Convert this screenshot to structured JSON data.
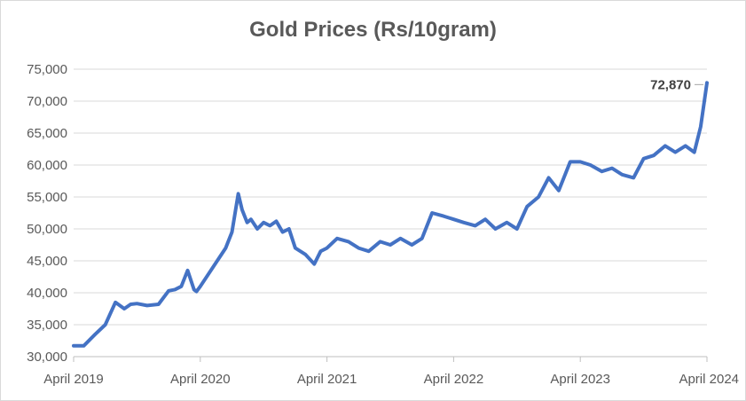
{
  "chart_data": {
    "type": "line",
    "title": "Gold Prices (Rs/10gram)",
    "xlabel": "",
    "ylabel": "",
    "ylim": [
      30000,
      75000
    ],
    "y_ticks": [
      30000,
      35000,
      40000,
      45000,
      50000,
      55000,
      60000,
      65000,
      70000,
      75000
    ],
    "y_tick_labels": [
      "30,000",
      "35,000",
      "40,000",
      "45,000",
      "50,000",
      "55,000",
      "60,000",
      "65,000",
      "70,000",
      "75,000"
    ],
    "x_range": [
      2019.25,
      2024.25
    ],
    "x_ticks": [
      2019.25,
      2020.25,
      2021.25,
      2022.25,
      2023.25,
      2024.25
    ],
    "x_tick_labels": [
      "April 2019",
      "April 2020",
      "April 2021",
      "April 2022",
      "April 2023",
      "April 2024"
    ],
    "grid": true,
    "legend": "none",
    "line_color": "#4472c4",
    "grid_color": "#d9d9d9",
    "annotation": {
      "text": "72,870",
      "x": 2024.25,
      "y": 72870
    },
    "series": [
      {
        "x": [
          2019.25,
          2019.33,
          2019.42,
          2019.5,
          2019.58,
          2019.65,
          2019.7,
          2019.75,
          2019.83,
          2019.92,
          2020.0,
          2020.05,
          2020.1,
          2020.15,
          2020.2,
          2020.22,
          2020.25,
          2020.45,
          2020.5,
          2020.55,
          2020.58,
          2020.62,
          2020.65,
          2020.7,
          2020.75,
          2020.8,
          2020.85,
          2020.9,
          2020.95,
          2021.0,
          2021.08,
          2021.15,
          2021.2,
          2021.25,
          2021.33,
          2021.42,
          2021.5,
          2021.58,
          2021.67,
          2021.75,
          2021.83,
          2021.92,
          2022.0,
          2022.08,
          2022.17,
          2022.25,
          2022.33,
          2022.42,
          2022.5,
          2022.58,
          2022.67,
          2022.75,
          2022.83,
          2022.92,
          2023.0,
          2023.08,
          2023.17,
          2023.25,
          2023.33,
          2023.42,
          2023.5,
          2023.58,
          2023.67,
          2023.75,
          2023.83,
          2023.92,
          2024.0,
          2024.08,
          2024.15,
          2024.2,
          2024.25
        ],
        "y": [
          31700,
          31700,
          33500,
          35000,
          38500,
          37500,
          38200,
          38300,
          38000,
          38200,
          40300,
          40500,
          41000,
          43500,
          40500,
          40200,
          41000,
          47000,
          49500,
          55500,
          53000,
          51000,
          51500,
          50000,
          51000,
          50500,
          51200,
          49500,
          50000,
          47000,
          46000,
          44500,
          46500,
          47000,
          48500,
          48000,
          47000,
          46500,
          48000,
          47500,
          48500,
          47500,
          48500,
          52500,
          52000,
          51500,
          51000,
          50500,
          51500,
          50000,
          51000,
          50000,
          53500,
          55000,
          58000,
          56000,
          60500,
          60500,
          60000,
          59000,
          59500,
          58500,
          58000,
          61000,
          61500,
          63000,
          62000,
          63000,
          62000,
          66000,
          72870
        ]
      }
    ]
  }
}
